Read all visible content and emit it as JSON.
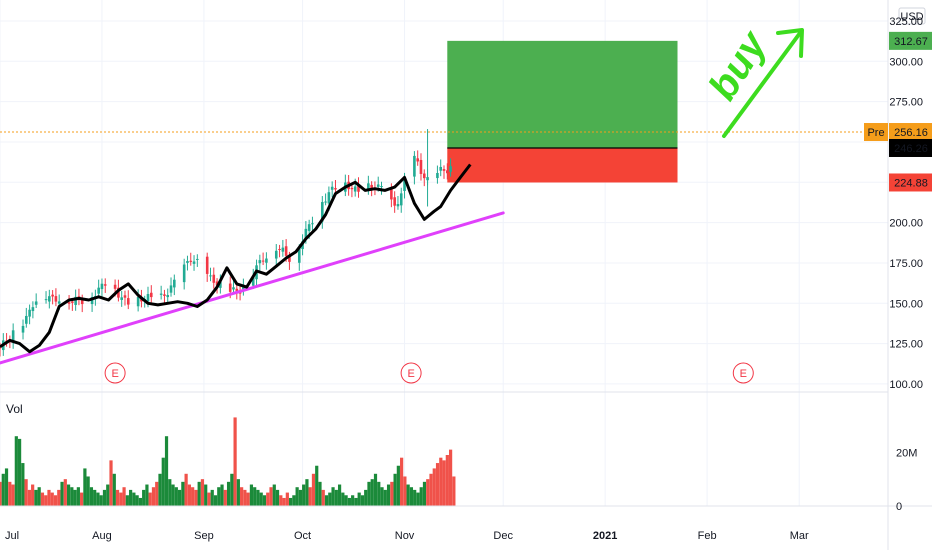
{
  "chart_data": {
    "type": "candlestick",
    "currency": "USD",
    "price_axis": {
      "ylim": [
        95,
        338
      ],
      "ticks": [
        100,
        125,
        150,
        175,
        200,
        225,
        250,
        275,
        300,
        325
      ],
      "tick_labels": [
        "100.00",
        "125.00",
        "150.00",
        "175.00",
        "200.00",
        "225.00",
        "250.00",
        "275.00",
        "300.00",
        "325.00"
      ]
    },
    "time_axis": {
      "labels": [
        "Jul",
        "Aug",
        "Sep",
        "Oct",
        "Nov",
        "Dec",
        "2021",
        "Feb",
        "Mar"
      ],
      "label_days": [
        0,
        31,
        62,
        92,
        123,
        153,
        184,
        215,
        243
      ],
      "xlim": [
        0,
        270
      ]
    },
    "price_series": {
      "name": "price",
      "color_up": "#22ab94",
      "color_down": "#f23645",
      "points": [
        [
          0,
          122
        ],
        [
          2,
          127
        ],
        [
          4,
          132
        ],
        [
          6,
          135
        ],
        [
          8,
          140
        ],
        [
          10,
          150
        ],
        [
          12,
          153
        ],
        [
          14,
          155
        ],
        [
          16,
          152
        ],
        [
          18,
          153
        ],
        [
          20,
          153
        ],
        [
          22,
          151
        ],
        [
          24,
          152
        ],
        [
          26,
          152
        ],
        [
          28,
          155
        ],
        [
          30,
          158
        ],
        [
          32,
          163
        ],
        [
          34,
          161
        ],
        [
          36,
          156
        ],
        [
          38,
          151
        ],
        [
          40,
          149
        ],
        [
          42,
          152
        ],
        [
          44,
          154
        ],
        [
          46,
          153
        ],
        [
          48,
          152
        ],
        [
          50,
          155
        ],
        [
          52,
          160
        ],
        [
          54,
          165
        ],
        [
          56,
          172
        ],
        [
          58,
          178
        ],
        [
          60,
          175
        ],
        [
          62,
          170
        ],
        [
          64,
          165
        ],
        [
          66,
          163
        ],
        [
          68,
          160
        ],
        [
          70,
          158
        ],
        [
          72,
          157
        ],
        [
          74,
          160
        ],
        [
          76,
          165
        ],
        [
          78,
          172
        ],
        [
          80,
          178
        ],
        [
          82,
          180
        ],
        [
          84,
          185
        ],
        [
          86,
          182
        ],
        [
          88,
          178
        ],
        [
          90,
          182
        ],
        [
          92,
          190
        ],
        [
          94,
          198
        ],
        [
          96,
          206
        ],
        [
          98,
          213
        ],
        [
          100,
          218
        ],
        [
          102,
          222
        ],
        [
          104,
          224
        ],
        [
          106,
          223
        ],
        [
          108,
          220
        ],
        [
          110,
          218
        ],
        [
          112,
          222
        ],
        [
          114,
          223
        ],
        [
          116,
          221
        ],
        [
          118,
          214
        ],
        [
          120,
          210
        ],
        [
          122,
          218
        ],
        [
          124,
          232
        ],
        [
          126,
          240
        ],
        [
          128,
          232
        ],
        [
          130,
          226
        ],
        [
          132,
          230
        ],
        [
          134,
          232
        ],
        [
          136,
          233
        ],
        [
          138,
          235
        ]
      ]
    },
    "close_line": {
      "name": "close",
      "color": "#000000",
      "points": [
        [
          0,
          123
        ],
        [
          3,
          127
        ],
        [
          6,
          125
        ],
        [
          9,
          120
        ],
        [
          12,
          124
        ],
        [
          15,
          132
        ],
        [
          18,
          148
        ],
        [
          21,
          152
        ],
        [
          24,
          153
        ],
        [
          27,
          152
        ],
        [
          30,
          154
        ],
        [
          33,
          152
        ],
        [
          36,
          158
        ],
        [
          39,
          162
        ],
        [
          42,
          155
        ],
        [
          45,
          150
        ],
        [
          48,
          149
        ],
        [
          51,
          150
        ],
        [
          54,
          151
        ],
        [
          57,
          150
        ],
        [
          60,
          148
        ],
        [
          63,
          152
        ],
        [
          66,
          160
        ],
        [
          69,
          172
        ],
        [
          72,
          162
        ],
        [
          75,
          160
        ],
        [
          78,
          170
        ],
        [
          81,
          168
        ],
        [
          84,
          173
        ],
        [
          87,
          178
        ],
        [
          90,
          182
        ],
        [
          93,
          190
        ],
        [
          96,
          196
        ],
        [
          99,
          205
        ],
        [
          102,
          218
        ],
        [
          105,
          222
        ],
        [
          108,
          225
        ],
        [
          111,
          220
        ],
        [
          114,
          221
        ],
        [
          117,
          220
        ],
        [
          120,
          222
        ],
        [
          123,
          228
        ],
        [
          126,
          212
        ],
        [
          129,
          202
        ],
        [
          132,
          207
        ],
        [
          134,
          210
        ],
        [
          137,
          220
        ],
        [
          140,
          228
        ],
        [
          143,
          236
        ]
      ]
    },
    "trendline": {
      "color": "#e040fb",
      "from": [
        0,
        113
      ],
      "to": [
        153,
        206
      ]
    },
    "position": {
      "start_day": 136,
      "end_day": 206,
      "entry": 246.26,
      "target": 312.67,
      "stop": 224.88,
      "profit_color": "#4caf50",
      "loss_color": "#f44336"
    },
    "pre_market_line": {
      "value": 256.16,
      "color": "#f59d1a"
    },
    "price_labels": [
      {
        "text": "312.67",
        "value": 312.67,
        "bg": "#4caf50",
        "fg": "#ffffff"
      },
      {
        "text": "256.16",
        "value": 256.16,
        "bg": "#f59d1a",
        "fg": "#ffffff",
        "prefix": "Pre"
      },
      {
        "text": "246.26",
        "value": 246.26,
        "bg": "#000000",
        "fg": "#ffffff"
      },
      {
        "text": "224.88",
        "value": 224.88,
        "bg": "#f44336",
        "fg": "#ffffff"
      }
    ],
    "earnings_markers": {
      "label": "E",
      "days": [
        35,
        125,
        226
      ],
      "color": "#f23645"
    },
    "annotation": {
      "text": "buy",
      "color": "#3ddc1f"
    },
    "volume": {
      "title": "Vol",
      "ylim": [
        0,
        38000000
      ],
      "ticks": [
        0,
        20000000
      ],
      "tick_labels": [
        "0",
        "20M"
      ],
      "values": [
        9,
        12,
        14,
        9,
        8,
        26,
        25,
        16,
        10,
        6,
        8,
        6,
        7,
        5,
        4,
        6,
        5,
        4,
        6,
        9,
        10,
        8,
        7,
        6,
        7,
        5,
        14,
        11,
        7,
        6,
        5,
        4,
        6,
        8,
        17,
        12,
        6,
        5,
        7,
        4,
        6,
        5,
        4,
        3,
        6,
        8,
        5,
        7,
        9,
        12,
        18,
        26,
        10,
        8,
        7,
        6,
        9,
        12,
        8,
        7,
        6,
        9,
        10,
        8,
        5,
        6,
        4,
        7,
        8,
        6,
        9,
        12,
        33,
        10,
        7,
        6,
        5,
        8,
        7,
        6,
        5,
        4,
        5,
        7,
        8,
        6,
        4,
        3,
        5,
        3,
        4,
        7,
        6,
        8,
        10,
        7,
        12,
        15,
        9,
        6,
        4,
        5,
        7,
        6,
        8,
        5,
        4,
        3,
        4,
        3,
        5,
        4,
        6,
        9,
        10,
        12,
        9,
        7,
        6,
        8,
        9,
        12,
        15,
        18,
        11,
        8,
        7,
        6,
        5,
        7,
        9,
        10,
        12,
        14,
        16,
        18,
        17,
        19,
        21,
        11
      ]
    }
  }
}
